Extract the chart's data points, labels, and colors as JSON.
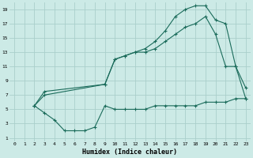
{
  "background_color": "#cceae6",
  "grid_color": "#aacfcb",
  "line_color": "#1a6b5a",
  "xlabel": "Humidex (Indice chaleur)",
  "xlim": [
    -0.5,
    23.5
  ],
  "ylim": [
    0.5,
    20
  ],
  "yticks": [
    1,
    3,
    5,
    7,
    9,
    11,
    13,
    15,
    17,
    19
  ],
  "xticks": [
    0,
    1,
    2,
    3,
    4,
    5,
    6,
    7,
    8,
    9,
    10,
    11,
    12,
    13,
    14,
    15,
    16,
    17,
    18,
    19,
    20,
    21,
    22,
    23
  ],
  "curve1_x": [
    2,
    3,
    4,
    5,
    6,
    7,
    8,
    9,
    10,
    11,
    12,
    13,
    14,
    15,
    16,
    17,
    18,
    19,
    20,
    21,
    22,
    23
  ],
  "curve1_y": [
    5.5,
    4.5,
    3.5,
    2.0,
    2.0,
    2.0,
    2.5,
    5.5,
    5.0,
    5.0,
    5.0,
    5.0,
    5.5,
    5.5,
    5.5,
    5.5,
    5.5,
    6.0,
    6.0,
    6.0,
    6.5,
    6.5
  ],
  "curve2_x": [
    2,
    3,
    9,
    10,
    11,
    12,
    13,
    14,
    15,
    16,
    17,
    18,
    19,
    20,
    21,
    22,
    23
  ],
  "curve2_y": [
    5.5,
    7.5,
    8.5,
    12.0,
    12.5,
    13.0,
    13.5,
    14.5,
    16.0,
    18.0,
    19.0,
    19.5,
    19.5,
    17.5,
    17.0,
    11.0,
    8.0
  ],
  "curve3_x": [
    2,
    3,
    9,
    10,
    11,
    12,
    13,
    14,
    15,
    16,
    17,
    18,
    19,
    20,
    21,
    22,
    23
  ],
  "curve3_y": [
    5.5,
    7.0,
    8.5,
    12.0,
    12.5,
    13.0,
    13.0,
    13.5,
    14.5,
    15.5,
    16.5,
    17.0,
    18.0,
    15.5,
    11.0,
    11.0,
    6.5
  ]
}
